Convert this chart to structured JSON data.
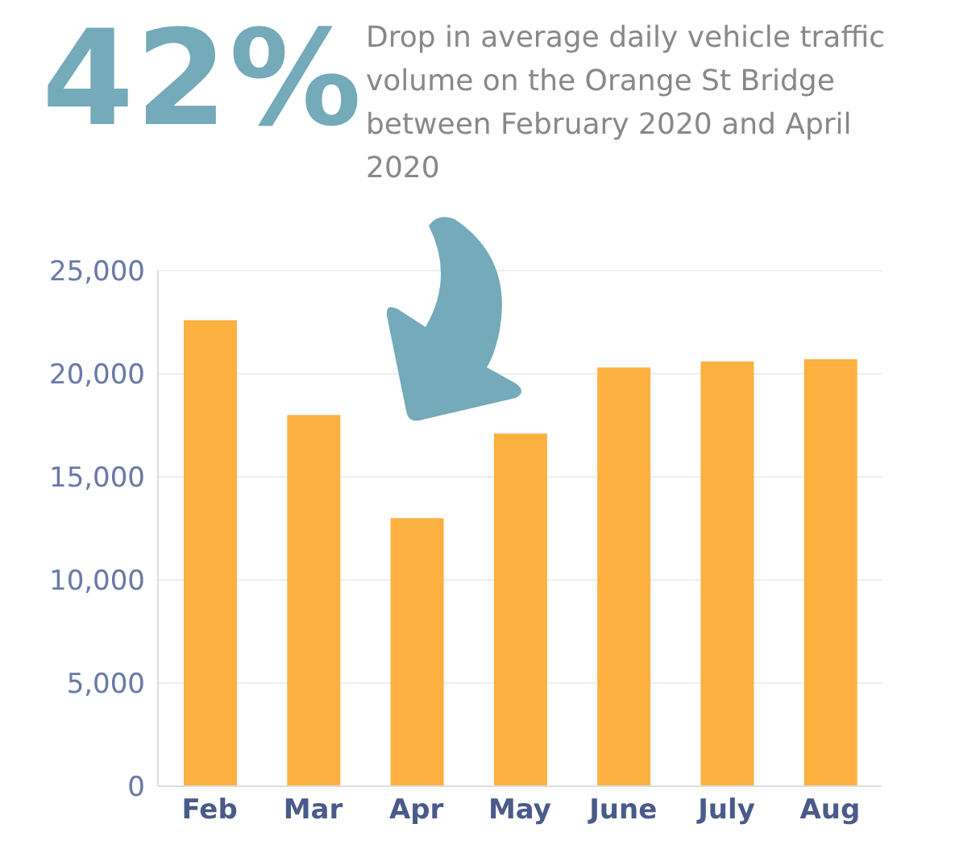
{
  "chart_data": {
    "type": "bar",
    "title": "42%",
    "subtitle": "Drop in average daily vehicle traffic volume on the Orange St Bridge between February 2020 and April 2020",
    "categories": [
      "Feb",
      "Mar",
      "Apr",
      "May",
      "June",
      "July",
      "Aug"
    ],
    "values": [
      22600,
      18000,
      13000,
      17100,
      20300,
      20600,
      20700
    ],
    "color": "#fbb040",
    "ylim": [
      0,
      25000
    ],
    "yticks": [
      0,
      {
        "value": 5000,
        "label": "5,000"
      },
      {
        "value": 10000,
        "label": "10,000"
      },
      {
        "value": 15000,
        "label": "15,000"
      },
      {
        "value": 20000,
        "label": "20,000"
      },
      {
        "value": 25000,
        "label": "25,000"
      }
    ],
    "grid": "y"
  }
}
